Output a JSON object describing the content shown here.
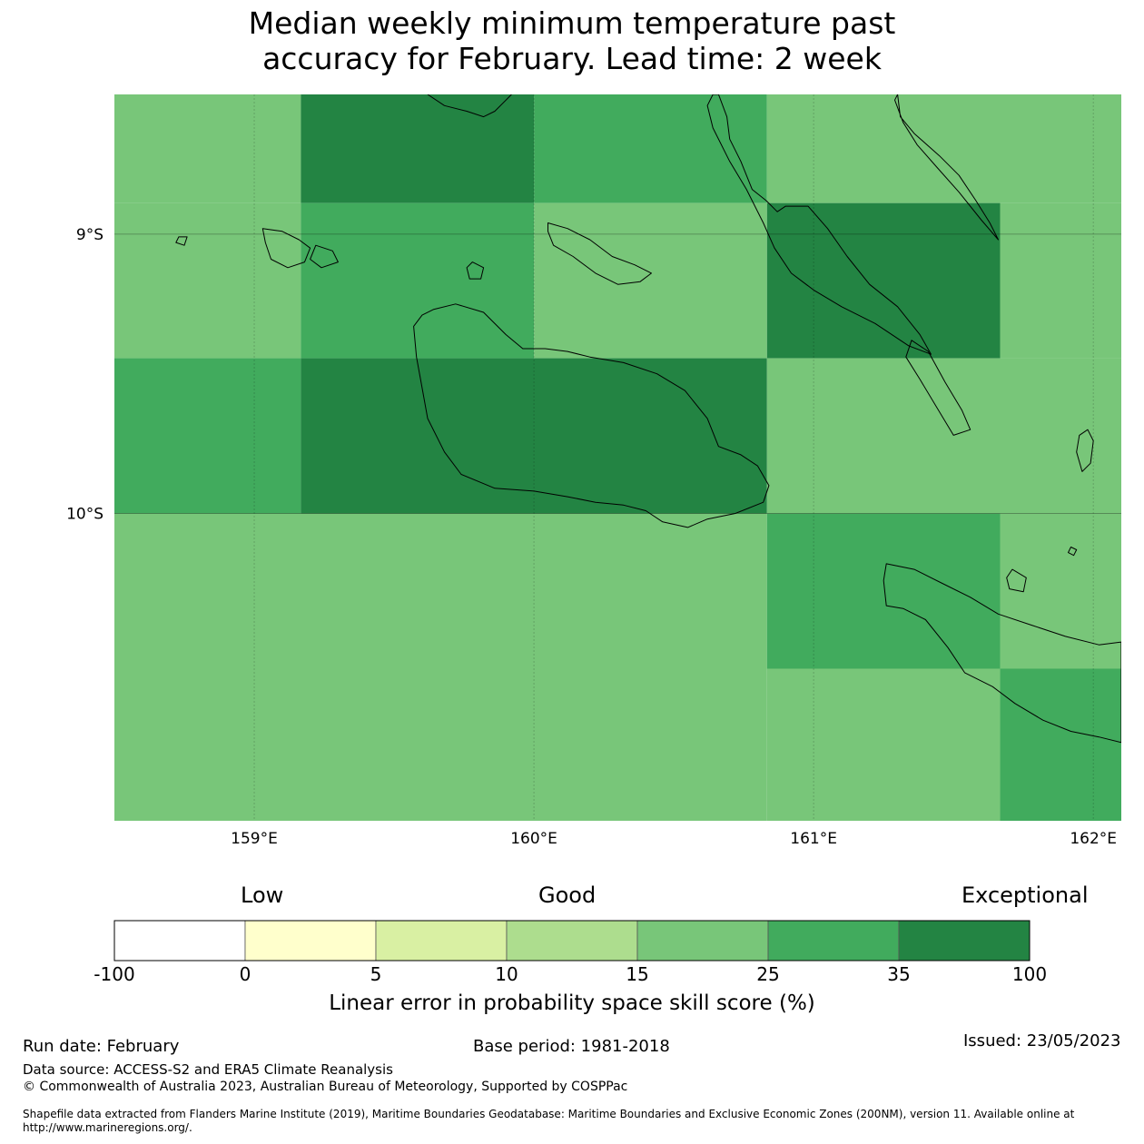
{
  "title": {
    "line1": "Median weekly minimum temperature past",
    "line2": "accuracy for February. Lead time: 2 week"
  },
  "map": {
    "lat_labels": [
      "9°S",
      "10°S"
    ],
    "lon_labels": [
      "159°E",
      "160°E",
      "161°E",
      "162°E"
    ],
    "extent": {
      "lon_min": 158.5,
      "lon_max": 162.1,
      "lat_max": -8.5,
      "lat_min": -11.1
    },
    "grid_lines": {
      "lons": [
        159,
        160,
        161,
        162
      ],
      "lats": [
        -9,
        -10
      ]
    },
    "colors": {
      "c10_15": "#addd8e",
      "c15_25": "#78c679",
      "c25_35": "#41ab5d",
      "c35_100": "#238443"
    },
    "cells": [
      {
        "lon0": 158.5,
        "lon1": 159.1667,
        "lat0": -8.5,
        "lat1": -8.8889,
        "cls": "c15_25"
      },
      {
        "lon0": 159.1667,
        "lon1": 160.0,
        "lat0": -8.5,
        "lat1": -8.8889,
        "cls": "c35_100"
      },
      {
        "lon0": 160.0,
        "lon1": 160.8333,
        "lat0": -8.5,
        "lat1": -8.8889,
        "cls": "c25_35"
      },
      {
        "lon0": 160.8333,
        "lon1": 162.1,
        "lat0": -8.5,
        "lat1": -8.8889,
        "cls": "c15_25"
      },
      {
        "lon0": 158.5,
        "lon1": 159.1667,
        "lat0": -8.8889,
        "lat1": -9.4444,
        "cls": "c15_25"
      },
      {
        "lon0": 159.1667,
        "lon1": 160.0,
        "lat0": -8.8889,
        "lat1": -9.4444,
        "cls": "c25_35"
      },
      {
        "lon0": 160.0,
        "lon1": 160.8333,
        "lat0": -8.8889,
        "lat1": -9.4444,
        "cls": "c15_25"
      },
      {
        "lon0": 160.8333,
        "lon1": 161.6667,
        "lat0": -8.8889,
        "lat1": -9.4444,
        "cls": "c35_100"
      },
      {
        "lon0": 161.6667,
        "lon1": 162.1,
        "lat0": -8.8889,
        "lat1": -9.4444,
        "cls": "c15_25"
      },
      {
        "lon0": 158.5,
        "lon1": 159.1667,
        "lat0": -9.4444,
        "lat1": -10.0,
        "cls": "c25_35"
      },
      {
        "lon0": 159.1667,
        "lon1": 160.8333,
        "lat0": -9.4444,
        "lat1": -10.0,
        "cls": "c35_100"
      },
      {
        "lon0": 160.8333,
        "lon1": 162.1,
        "lat0": -9.4444,
        "lat1": -10.0,
        "cls": "c15_25"
      },
      {
        "lon0": 158.5,
        "lon1": 160.8333,
        "lat0": -10.0,
        "lat1": -11.1,
        "cls": "c15_25"
      },
      {
        "lon0": 160.8333,
        "lon1": 161.6667,
        "lat0": -10.0,
        "lat1": -10.5556,
        "cls": "c25_35"
      },
      {
        "lon0": 161.6667,
        "lon1": 162.1,
        "lat0": -10.0,
        "lat1": -10.5556,
        "cls": "c15_25"
      },
      {
        "lon0": 160.8333,
        "lon1": 161.6667,
        "lat0": -10.5556,
        "lat1": -11.1,
        "cls": "c15_25"
      },
      {
        "lon0": 161.6667,
        "lon1": 162.1,
        "lat0": -10.5556,
        "lat1": -11.1,
        "cls": "c25_35"
      }
    ],
    "coastlines": [
      {
        "name": "santa-isabel",
        "pts": [
          [
            161.3,
            -8.5
          ],
          [
            161.31,
            -8.58
          ],
          [
            161.36,
            -8.64
          ],
          [
            161.45,
            -8.72
          ],
          [
            161.52,
            -8.79
          ],
          [
            161.58,
            -8.88
          ],
          [
            161.63,
            -8.96
          ],
          [
            161.66,
            -9.02
          ],
          [
            161.6,
            -8.95
          ],
          [
            161.52,
            -8.85
          ],
          [
            161.44,
            -8.76
          ],
          [
            161.37,
            -8.68
          ],
          [
            161.32,
            -8.6
          ],
          [
            161.29,
            -8.52
          ]
        ]
      },
      {
        "name": "malaita",
        "pts": [
          [
            160.66,
            -8.5
          ],
          [
            160.69,
            -8.58
          ],
          [
            160.7,
            -8.66
          ],
          [
            160.74,
            -8.74
          ],
          [
            160.78,
            -8.84
          ],
          [
            160.83,
            -8.88
          ],
          [
            160.87,
            -8.92
          ],
          [
            160.9,
            -8.9
          ],
          [
            160.98,
            -8.9
          ],
          [
            161.05,
            -8.98
          ],
          [
            161.12,
            -9.08
          ],
          [
            161.2,
            -9.18
          ],
          [
            161.3,
            -9.26
          ],
          [
            161.38,
            -9.36
          ],
          [
            161.42,
            -9.43
          ],
          [
            161.34,
            -9.4
          ],
          [
            161.22,
            -9.32
          ],
          [
            161.1,
            -9.26
          ],
          [
            161.0,
            -9.2
          ],
          [
            160.92,
            -9.14
          ],
          [
            160.86,
            -9.05
          ],
          [
            160.82,
            -8.96
          ],
          [
            160.76,
            -8.84
          ],
          [
            160.7,
            -8.74
          ],
          [
            160.64,
            -8.62
          ],
          [
            160.62,
            -8.54
          ],
          [
            160.64,
            -8.5
          ]
        ]
      },
      {
        "name": "small-malaita",
        "pts": [
          [
            161.35,
            -9.38
          ],
          [
            161.41,
            -9.42
          ],
          [
            161.47,
            -9.53
          ],
          [
            161.53,
            -9.63
          ],
          [
            161.56,
            -9.7
          ],
          [
            161.5,
            -9.72
          ],
          [
            161.44,
            -9.62
          ],
          [
            161.38,
            -9.52
          ],
          [
            161.33,
            -9.44
          ]
        ]
      },
      {
        "name": "ulawa",
        "pts": [
          [
            161.98,
            -9.7
          ],
          [
            162.0,
            -9.74
          ],
          [
            161.99,
            -9.82
          ],
          [
            161.96,
            -9.85
          ],
          [
            161.94,
            -9.78
          ],
          [
            161.95,
            -9.72
          ]
        ]
      },
      {
        "name": "guadalcanal",
        "pts": [
          [
            159.64,
            -9.27
          ],
          [
            159.72,
            -9.25
          ],
          [
            159.82,
            -9.28
          ],
          [
            159.9,
            -9.36
          ],
          [
            159.96,
            -9.41
          ],
          [
            160.04,
            -9.41
          ],
          [
            160.12,
            -9.42
          ],
          [
            160.2,
            -9.44
          ],
          [
            160.32,
            -9.46
          ],
          [
            160.44,
            -9.5
          ],
          [
            160.54,
            -9.56
          ],
          [
            160.62,
            -9.66
          ],
          [
            160.66,
            -9.76
          ],
          [
            160.74,
            -9.79
          ],
          [
            160.8,
            -9.83
          ],
          [
            160.84,
            -9.9
          ],
          [
            160.82,
            -9.96
          ],
          [
            160.72,
            -10.0
          ],
          [
            160.62,
            -10.02
          ],
          [
            160.55,
            -10.05
          ],
          [
            160.46,
            -10.03
          ],
          [
            160.4,
            -9.99
          ],
          [
            160.32,
            -9.97
          ],
          [
            160.22,
            -9.96
          ],
          [
            160.12,
            -9.94
          ],
          [
            160.0,
            -9.92
          ],
          [
            159.86,
            -9.91
          ],
          [
            159.74,
            -9.86
          ],
          [
            159.68,
            -9.78
          ],
          [
            159.62,
            -9.66
          ],
          [
            159.6,
            -9.55
          ],
          [
            159.58,
            -9.44
          ],
          [
            159.57,
            -9.33
          ],
          [
            159.6,
            -9.29
          ]
        ]
      },
      {
        "name": "nggela",
        "pts": [
          [
            160.05,
            -8.96
          ],
          [
            160.12,
            -8.98
          ],
          [
            160.2,
            -9.02
          ],
          [
            160.28,
            -9.08
          ],
          [
            160.36,
            -9.11
          ],
          [
            160.42,
            -9.14
          ],
          [
            160.38,
            -9.17
          ],
          [
            160.3,
            -9.18
          ],
          [
            160.22,
            -9.14
          ],
          [
            160.14,
            -9.08
          ],
          [
            160.07,
            -9.04
          ],
          [
            160.05,
            -8.99
          ]
        ]
      },
      {
        "name": "savo",
        "pts": [
          [
            159.78,
            -9.1
          ],
          [
            159.82,
            -9.12
          ],
          [
            159.81,
            -9.16
          ],
          [
            159.77,
            -9.16
          ],
          [
            159.76,
            -9.12
          ]
        ]
      },
      {
        "name": "russell",
        "pts": [
          [
            159.03,
            -8.98
          ],
          [
            159.1,
            -8.99
          ],
          [
            159.16,
            -9.02
          ],
          [
            159.2,
            -9.05
          ],
          [
            159.18,
            -9.1
          ],
          [
            159.12,
            -9.12
          ],
          [
            159.06,
            -9.09
          ],
          [
            159.04,
            -9.03
          ]
        ]
      },
      {
        "name": "russell-east",
        "pts": [
          [
            159.22,
            -9.04
          ],
          [
            159.28,
            -9.06
          ],
          [
            159.3,
            -9.1
          ],
          [
            159.24,
            -9.12
          ],
          [
            159.2,
            -9.09
          ]
        ]
      },
      {
        "name": "tiny-west",
        "pts": [
          [
            158.73,
            -9.01
          ],
          [
            158.76,
            -9.01
          ],
          [
            158.75,
            -9.04
          ],
          [
            158.72,
            -9.03
          ]
        ]
      },
      {
        "name": "makira",
        "pts": [
          [
            161.26,
            -10.18
          ],
          [
            161.36,
            -10.2
          ],
          [
            161.46,
            -10.25
          ],
          [
            161.56,
            -10.3
          ],
          [
            161.66,
            -10.36
          ],
          [
            161.78,
            -10.4
          ],
          [
            161.9,
            -10.44
          ],
          [
            162.02,
            -10.47
          ],
          [
            162.1,
            -10.46
          ],
          [
            162.1,
            -10.82
          ],
          [
            162.02,
            -10.8
          ],
          [
            161.92,
            -10.78
          ],
          [
            161.82,
            -10.74
          ],
          [
            161.72,
            -10.68
          ],
          [
            161.64,
            -10.62
          ],
          [
            161.54,
            -10.57
          ],
          [
            161.48,
            -10.48
          ],
          [
            161.4,
            -10.38
          ],
          [
            161.32,
            -10.34
          ],
          [
            161.26,
            -10.33
          ],
          [
            161.25,
            -10.24
          ]
        ]
      },
      {
        "name": "ugi",
        "pts": [
          [
            161.71,
            -10.2
          ],
          [
            161.76,
            -10.23
          ],
          [
            161.75,
            -10.28
          ],
          [
            161.7,
            -10.27
          ],
          [
            161.69,
            -10.23
          ]
        ]
      },
      {
        "name": "olu-malau",
        "pts": [
          [
            161.92,
            -10.12
          ],
          [
            161.94,
            -10.13
          ],
          [
            161.93,
            -10.15
          ],
          [
            161.91,
            -10.14
          ]
        ]
      },
      {
        "name": "coast-top-mid",
        "pts": [
          [
            159.62,
            -8.5
          ],
          [
            159.68,
            -8.54
          ],
          [
            159.76,
            -8.56
          ],
          [
            159.82,
            -8.58
          ],
          [
            159.86,
            -8.56
          ],
          [
            159.9,
            -8.52
          ],
          [
            159.92,
            -8.5
          ]
        ]
      }
    ]
  },
  "colorbar": {
    "head_low": "Low",
    "head_good": "Good",
    "head_exceptional": "Exceptional",
    "colors": [
      "#ffffff",
      "#ffffcc",
      "#d9f0a3",
      "#addd8e",
      "#78c679",
      "#41ab5d",
      "#238443"
    ],
    "ticks": [
      "-100",
      "0",
      "5",
      "10",
      "15",
      "25",
      "35",
      "100"
    ],
    "label": "Linear error in probability space skill score (%)"
  },
  "footer": {
    "run_date": "Run date: February",
    "base_period": "Base period: 1981-2018",
    "issued": "Issued: 23/05/2023",
    "data_source": "Data source: ACCESS-S2 and ERA5 Climate Reanalysis",
    "copyright": "© Commonwealth of Australia 2023, Australian Bureau of Meteorology, Supported by COSPPac",
    "shapefile_1": "Shapefile data extracted from Flanders Marine Institute (2019), Maritime Boundaries Geodatabase: Maritime Boundaries and Exclusive Economic Zones (200NM), version 11. Available online at",
    "shapefile_2": "http://www.marineregions.org/."
  }
}
